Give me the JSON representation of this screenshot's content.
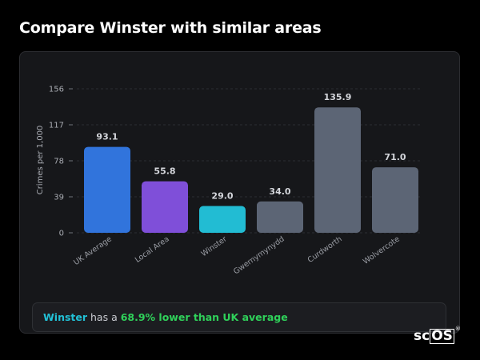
{
  "page": {
    "title": "Compare Winster with similar areas"
  },
  "summary": {
    "area_name": "Winster",
    "middle": " has a ",
    "highlight": "68.9% lower than UK average"
  },
  "logo": {
    "prefix": "sc",
    "boxed": "OS",
    "mark": "®"
  },
  "chart_data": {
    "type": "bar",
    "ylabel": "Crimes per 1,000",
    "yticks": [
      0,
      39,
      78,
      117,
      156
    ],
    "ylim": [
      0,
      156
    ],
    "grid": true,
    "categories": [
      "UK Average",
      "Local Area",
      "Winster",
      "Gwernymynydd",
      "Curdworth",
      "Wolvercote"
    ],
    "values": [
      93.1,
      55.8,
      29.0,
      34.0,
      135.9,
      71.0
    ],
    "value_labels": [
      "93.1",
      "55.8",
      "29.0",
      "34.0",
      "135.9",
      "71.0"
    ],
    "colors": [
      "#3174dc",
      "#7f4fd9",
      "#22bcd3",
      "#5c6575",
      "#5c6575",
      "#5c6575"
    ]
  }
}
